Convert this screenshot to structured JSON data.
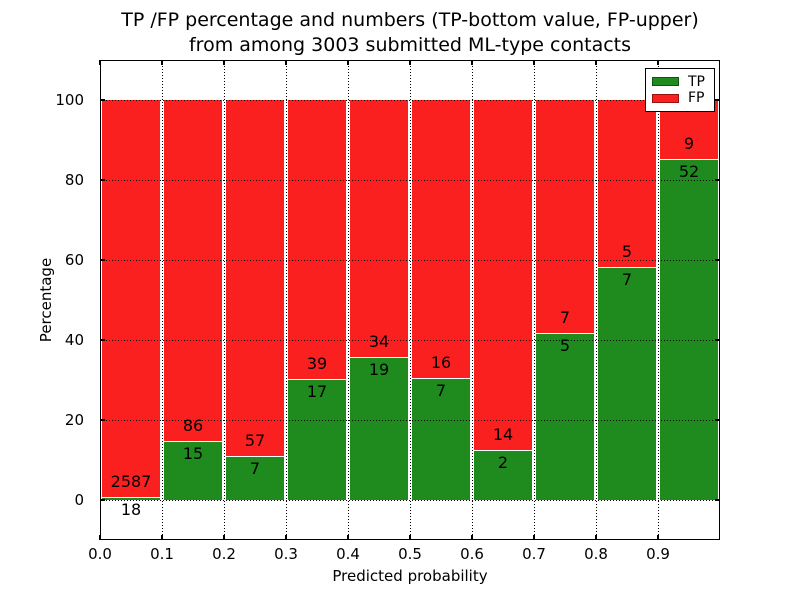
{
  "chart_data": {
    "type": "bar",
    "stacked": true,
    "title": "TP /FP percentage and numbers (TP-bottom value, FP-upper) from among 3003 submitted ML-type contacts",
    "title_lines": [
      "TP /FP percentage and numbers (TP-bottom value, FP-upper)",
      "from among 3003 submitted ML-type contacts"
    ],
    "xlabel": "Predicted probability",
    "ylabel": "Percentage",
    "xlim": [
      0.0,
      1.0
    ],
    "ylim": [
      -10,
      110
    ],
    "x_tick_labels": [
      "0.0",
      "0.1",
      "0.2",
      "0.3",
      "0.4",
      "0.5",
      "0.6",
      "0.7",
      "0.8",
      "0.9"
    ],
    "y_tick_values": [
      0,
      20,
      40,
      60,
      80,
      100
    ],
    "grid": "dotted",
    "legend_position": "upper right",
    "total_contacts": 3003,
    "series": [
      {
        "name": "TP",
        "color": "#1f8b1f",
        "role": "bottom segment, percentage of bin"
      },
      {
        "name": "FP",
        "color": "#fa2020",
        "role": "top segment, percentage of bin"
      }
    ],
    "bins": [
      {
        "range": [
          0.0,
          0.1
        ],
        "tp": 18,
        "fp": 2587,
        "tp_pct": 0.7,
        "fp_pct": 99.3
      },
      {
        "range": [
          0.1,
          0.2
        ],
        "tp": 15,
        "fp": 86,
        "tp_pct": 14.9,
        "fp_pct": 85.1
      },
      {
        "range": [
          0.2,
          0.3
        ],
        "tp": 7,
        "fp": 57,
        "tp_pct": 10.9,
        "fp_pct": 89.1
      },
      {
        "range": [
          0.3,
          0.4
        ],
        "tp": 17,
        "fp": 39,
        "tp_pct": 30.4,
        "fp_pct": 69.6
      },
      {
        "range": [
          0.4,
          0.5
        ],
        "tp": 19,
        "fp": 34,
        "tp_pct": 35.8,
        "fp_pct": 64.2
      },
      {
        "range": [
          0.5,
          0.6
        ],
        "tp": 7,
        "fp": 16,
        "tp_pct": 30.4,
        "fp_pct": 69.6
      },
      {
        "range": [
          0.6,
          0.7
        ],
        "tp": 2,
        "fp": 14,
        "tp_pct": 12.5,
        "fp_pct": 87.5
      },
      {
        "range": [
          0.7,
          0.8
        ],
        "tp": 5,
        "fp": 7,
        "tp_pct": 41.7,
        "fp_pct": 58.3
      },
      {
        "range": [
          0.8,
          0.9
        ],
        "tp": 7,
        "fp": 5,
        "tp_pct": 58.3,
        "fp_pct": 41.7
      },
      {
        "range": [
          0.9,
          1.0
        ],
        "tp": 52,
        "fp": 9,
        "tp_pct": 85.2,
        "fp_pct": 14.8
      }
    ]
  }
}
